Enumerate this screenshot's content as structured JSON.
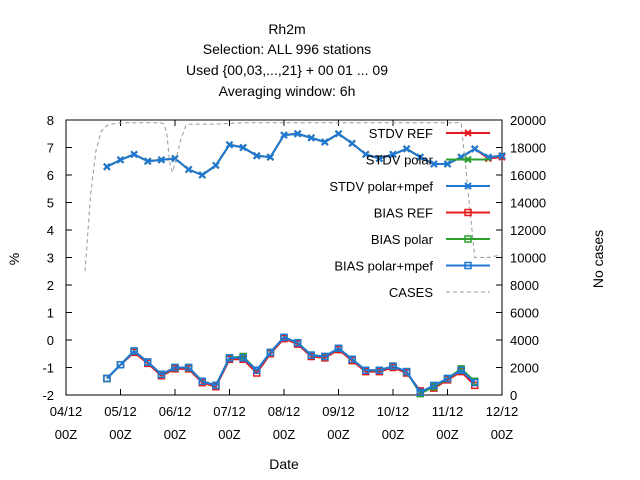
{
  "chart_data": {
    "type": "line",
    "title_lines": [
      "Rh2m",
      "Selection: ALL    996 stations",
      "Used {00,03,...,21} + 00 01 ... 09",
      "Averaging window:  6h"
    ],
    "xlabel": "Date",
    "ylabel": "%",
    "y2label": "No cases",
    "xlim": [
      0,
      8
    ],
    "ylim": [
      -2,
      8
    ],
    "y2lim": [
      0,
      20000
    ],
    "x_ticks": [
      {
        "pos": 0,
        "line1": "04/12",
        "line2": "00Z"
      },
      {
        "pos": 1,
        "line1": "05/12",
        "line2": "00Z"
      },
      {
        "pos": 2,
        "line1": "06/12",
        "line2": "00Z"
      },
      {
        "pos": 3,
        "line1": "07/12",
        "line2": "00Z"
      },
      {
        "pos": 4,
        "line1": "08/12",
        "line2": "00Z"
      },
      {
        "pos": 5,
        "line1": "09/12",
        "line2": "00Z"
      },
      {
        "pos": 6,
        "line1": "10/12",
        "line2": "00Z"
      },
      {
        "pos": 7,
        "line1": "11/12",
        "line2": "00Z"
      },
      {
        "pos": 8,
        "line1": "12/12",
        "line2": "00Z"
      }
    ],
    "y_ticks": [
      -2,
      -1,
      0,
      1,
      2,
      3,
      4,
      5,
      6,
      7,
      8
    ],
    "y2_ticks": [
      0,
      2000,
      4000,
      6000,
      8000,
      10000,
      12000,
      14000,
      16000,
      18000,
      20000
    ],
    "grid": false,
    "legend_position": "top-right",
    "x": [
      0.75,
      1.0,
      1.25,
      1.5,
      1.75,
      2.0,
      2.25,
      2.5,
      2.75,
      3.0,
      3.25,
      3.5,
      3.75,
      4.0,
      4.25,
      4.5,
      4.75,
      5.0,
      5.25,
      5.5,
      5.75,
      6.0,
      6.25,
      6.5,
      6.75,
      7.0,
      7.25,
      7.5,
      7.75,
      8.0,
      8.25,
      8.5
    ],
    "series": [
      {
        "name": "STDV REF",
        "color": "#e41a1c",
        "marker": "x",
        "axis": "y1",
        "values": [
          6.3,
          6.55,
          6.75,
          6.5,
          6.55,
          6.6,
          6.2,
          6.0,
          6.35,
          7.1,
          7.0,
          6.7,
          6.65,
          7.45,
          7.5,
          7.35,
          7.2,
          7.5,
          7.15,
          6.75,
          6.6,
          6.75,
          6.95,
          6.65,
          6.4,
          6.4,
          6.65,
          6.95,
          6.6,
          6.65,
          null,
          null
        ]
      },
      {
        "name": "STDV polar",
        "color": "#2ca02c",
        "marker": "x",
        "axis": "y1",
        "values": [
          6.3,
          6.55,
          6.75,
          6.5,
          6.55,
          6.6,
          6.2,
          6.0,
          6.35,
          7.1,
          7.0,
          6.7,
          6.65,
          7.45,
          7.5,
          7.35,
          7.2,
          7.5,
          7.15,
          6.75,
          6.6,
          6.75,
          6.95,
          6.65,
          6.4,
          6.4,
          6.65,
          6.95,
          6.65,
          6.7,
          null,
          null
        ]
      },
      {
        "name": "STDV polar+mpef",
        "color": "#1f78d4",
        "marker": "x",
        "axis": "y1",
        "values": [
          6.3,
          6.55,
          6.75,
          6.5,
          6.55,
          6.6,
          6.2,
          6.0,
          6.35,
          7.1,
          7.0,
          6.7,
          6.65,
          7.45,
          7.5,
          7.35,
          7.2,
          7.5,
          7.15,
          6.75,
          6.6,
          6.75,
          6.95,
          6.65,
          6.4,
          6.4,
          6.65,
          6.95,
          6.65,
          6.7,
          null,
          null
        ]
      },
      {
        "name": "BIAS REF",
        "color": "#e41a1c",
        "marker": "square",
        "axis": "y1",
        "values": [
          -1.4,
          -0.9,
          -0.45,
          -0.85,
          -1.3,
          -1.05,
          -1.05,
          -1.55,
          -1.7,
          -0.7,
          -0.7,
          -1.2,
          -0.5,
          0.05,
          -0.15,
          -0.6,
          -0.65,
          -0.35,
          -0.75,
          -1.15,
          -1.15,
          -1.0,
          -1.2,
          -1.85,
          -1.75,
          -1.45,
          -1.15,
          -1.65,
          null,
          null,
          null,
          null
        ]
      },
      {
        "name": "BIAS polar",
        "color": "#2ca02c",
        "marker": "square",
        "axis": "y1",
        "values": [
          -1.4,
          -0.9,
          -0.4,
          -0.8,
          -1.25,
          -1.0,
          -1.0,
          -1.5,
          -1.65,
          -0.65,
          -0.6,
          -1.1,
          -0.45,
          0.1,
          -0.1,
          -0.55,
          -0.6,
          -0.3,
          -0.7,
          -1.1,
          -1.1,
          -0.95,
          -1.15,
          -1.95,
          -1.7,
          -1.4,
          -1.05,
          -1.5,
          null,
          null,
          null,
          null
        ]
      },
      {
        "name": "BIAS polar+mpef",
        "color": "#1f78d4",
        "marker": "square",
        "axis": "y1",
        "values": [
          -1.4,
          -0.9,
          -0.4,
          -0.8,
          -1.25,
          -1.0,
          -1.0,
          -1.5,
          -1.65,
          -0.65,
          -0.65,
          -1.1,
          -0.45,
          0.1,
          -0.1,
          -0.55,
          -0.6,
          -0.3,
          -0.7,
          -1.1,
          -1.1,
          -0.95,
          -1.15,
          -1.9,
          -1.65,
          -1.4,
          -1.1,
          -1.55,
          null,
          null,
          null,
          null
        ]
      },
      {
        "name": "CASES",
        "color": "#999999",
        "marker": "none",
        "dash": true,
        "axis": "y2",
        "x": [
          0.35,
          0.45,
          0.55,
          0.65,
          0.75,
          0.85,
          1.0,
          1.25,
          1.5,
          1.75,
          1.8,
          1.85,
          1.9,
          1.95,
          2.0,
          2.1,
          2.2,
          2.25,
          2.3,
          2.35,
          2.5,
          2.75,
          3.0,
          3.25,
          3.5,
          3.75,
          4.0,
          4.25,
          4.5,
          4.75,
          5.0,
          5.25,
          5.5,
          5.75,
          6.0,
          6.25,
          6.5,
          6.75,
          7.0,
          7.25,
          7.5,
          7.75,
          8.0
        ],
        "values": [
          9000,
          14500,
          17800,
          19200,
          19600,
          19700,
          19800,
          19800,
          19800,
          19800,
          19700,
          19000,
          17000,
          16200,
          16800,
          18500,
          19600,
          19700,
          19700,
          19700,
          19700,
          19700,
          19750,
          19800,
          19800,
          19800,
          19800,
          19800,
          19800,
          19800,
          19800,
          19800,
          19800,
          19800,
          19800,
          19800,
          19800,
          19800,
          19800,
          19800,
          10000,
          10000,
          10200
        ]
      }
    ]
  }
}
